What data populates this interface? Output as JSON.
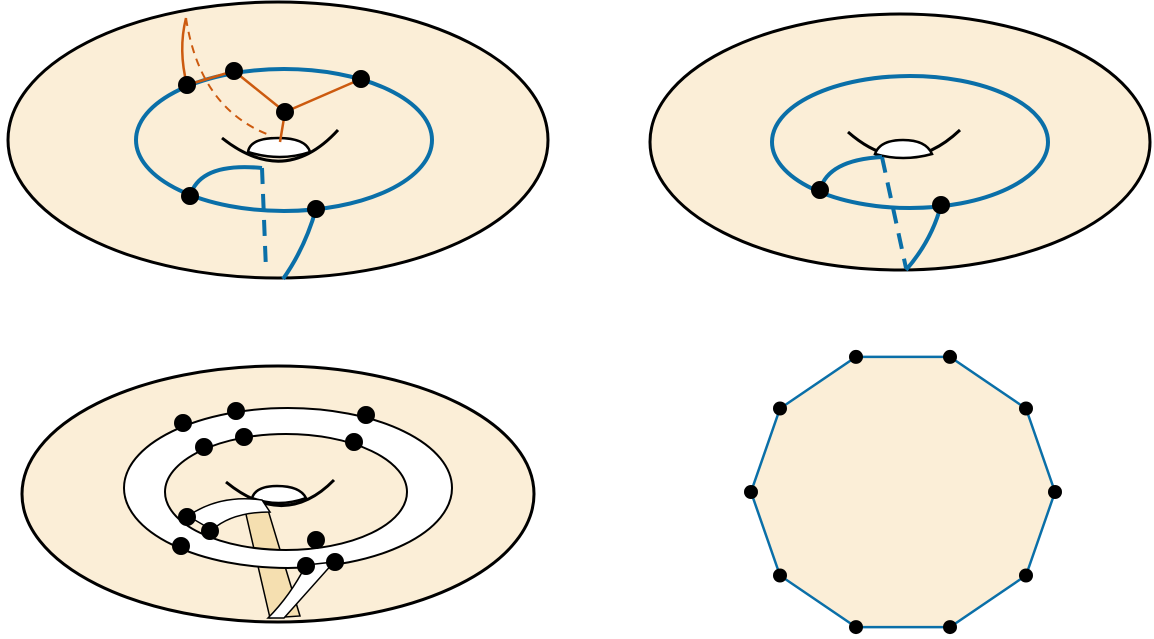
{
  "colors": {
    "surface": "#fbeed7",
    "outline": "#000000",
    "curve": "#0a6fa8",
    "graph": "#cc5a0f",
    "band": "#ffffff",
    "twist": "#f5dfb0",
    "vertex": "#000000"
  },
  "panels": [
    {
      "name": "torus-with-curve-and-graph"
    },
    {
      "name": "torus-with-curve"
    },
    {
      "name": "torus-with-ribbon-band"
    },
    {
      "name": "polygon-with-vertices",
      "vertex_count": 10
    }
  ]
}
